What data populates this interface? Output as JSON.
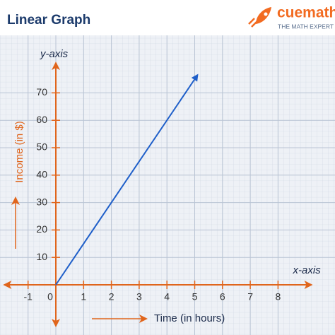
{
  "chart_data": {
    "type": "line",
    "title": "Linear Graph",
    "brand": "cuemath",
    "brand_tagline": "THE MATH EXPERT",
    "x_axis_name": "x-axis",
    "y_axis_name": "y-axis",
    "xlabel": "Time (in hours)",
    "ylabel": "Income (in $)",
    "x": [
      0,
      5.1
    ],
    "series": [
      {
        "color": "#1f5fc9",
        "values": [
          0,
          76.5
        ]
      }
    ],
    "xlim": [
      -1.9,
      9.2
    ],
    "ylim": [
      -16,
      84
    ],
    "xticks": [
      -1,
      0,
      1,
      2,
      3,
      4,
      5,
      6,
      7,
      8
    ],
    "yticks": [
      10,
      20,
      30,
      40,
      50,
      60,
      70
    ],
    "axis_color": "#e0651c",
    "grid": true
  }
}
